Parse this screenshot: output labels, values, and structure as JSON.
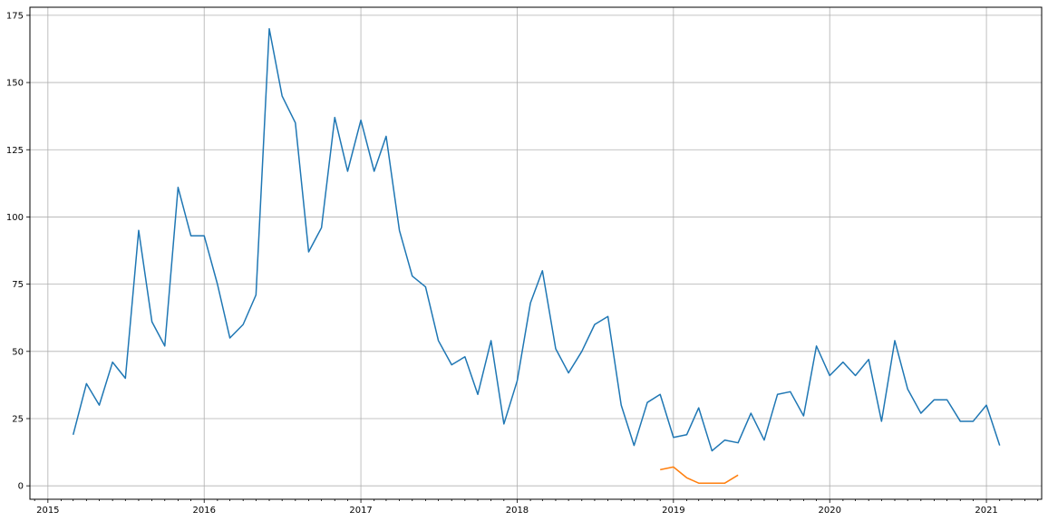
{
  "chart_data": {
    "type": "line",
    "title": "",
    "xlabel": "",
    "ylabel": "",
    "grid": true,
    "xlim": [
      "2014-11-20",
      "2021-05-10"
    ],
    "ylim": [
      -5,
      178
    ],
    "x_ticks": [
      {
        "label": "2015",
        "date": "2015-01-01"
      },
      {
        "label": "2016",
        "date": "2016-01-01"
      },
      {
        "label": "2017",
        "date": "2017-01-01"
      },
      {
        "label": "2018",
        "date": "2018-01-01"
      },
      {
        "label": "2019",
        "date": "2019-01-01"
      },
      {
        "label": "2020",
        "date": "2020-01-01"
      },
      {
        "label": "2021",
        "date": "2021-01-01"
      }
    ],
    "y_ticks": [
      0,
      25,
      50,
      75,
      100,
      125,
      150,
      175
    ],
    "series": [
      {
        "color": "#1f77b4",
        "x": [
          "2015-03-01",
          "2015-04-01",
          "2015-05-01",
          "2015-06-01",
          "2015-07-01",
          "2015-08-01",
          "2015-09-01",
          "2015-10-01",
          "2015-11-01",
          "2015-12-01",
          "2016-01-01",
          "2016-02-01",
          "2016-03-01",
          "2016-04-01",
          "2016-05-01",
          "2016-06-01",
          "2016-07-01",
          "2016-08-01",
          "2016-09-01",
          "2016-10-01",
          "2016-11-01",
          "2016-12-01",
          "2017-01-01",
          "2017-02-01",
          "2017-03-01",
          "2017-04-01",
          "2017-05-01",
          "2017-06-01",
          "2017-07-01",
          "2017-08-01",
          "2017-09-01",
          "2017-10-01",
          "2017-11-01",
          "2017-12-01",
          "2018-01-01",
          "2018-02-01",
          "2018-03-01",
          "2018-04-01",
          "2018-05-01",
          "2018-06-01",
          "2018-07-01",
          "2018-08-01",
          "2018-09-01",
          "2018-10-01",
          "2018-11-01",
          "2018-12-01",
          "2019-01-01",
          "2019-02-01",
          "2019-03-01",
          "2019-04-01",
          "2019-05-01",
          "2019-06-01",
          "2019-07-01",
          "2019-08-01",
          "2019-09-01",
          "2019-10-01",
          "2019-11-01",
          "2019-12-01",
          "2020-01-01",
          "2020-02-01",
          "2020-03-01",
          "2020-04-01",
          "2020-05-01",
          "2020-06-01",
          "2020-07-01",
          "2020-08-01",
          "2020-09-01",
          "2020-10-01",
          "2020-11-01",
          "2020-12-01",
          "2021-01-01",
          "2021-02-01"
        ],
        "values": [
          19,
          38,
          30,
          46,
          40,
          95,
          61,
          52,
          111,
          93,
          93,
          75,
          55,
          60,
          71,
          170,
          145,
          135,
          87,
          96,
          137,
          117,
          136,
          117,
          130,
          95,
          78,
          74,
          54,
          45,
          48,
          34,
          54,
          23,
          39,
          68,
          80,
          51,
          42,
          50,
          60,
          63,
          30,
          15,
          31,
          34,
          18,
          19,
          29,
          13,
          17,
          16,
          27,
          17,
          34,
          35,
          26,
          52,
          41,
          46,
          41,
          47,
          24,
          54,
          36,
          27,
          32,
          32,
          24,
          24,
          30,
          15
        ]
      },
      {
        "color": "#ff7f0e",
        "x": [
          "2018-12-01",
          "2019-01-01",
          "2019-02-01",
          "2019-03-01",
          "2019-04-01",
          "2019-05-01",
          "2019-06-01"
        ],
        "values": [
          6,
          7,
          3,
          1,
          1,
          1,
          4
        ]
      }
    ]
  }
}
